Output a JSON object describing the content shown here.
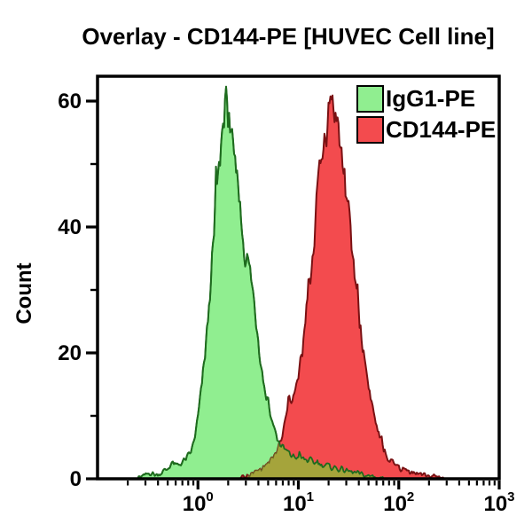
{
  "chart_data": {
    "type": "area",
    "subtype": "flow-cytometry-histogram-overlay",
    "title": "Overlay - CD144-PE [HUVEC Cell line]",
    "xlabel": "",
    "ylabel": "Count",
    "x_scale": "log10",
    "x_range_exponents": [
      -1,
      3
    ],
    "ylim": [
      0,
      64
    ],
    "y_ticks_major": [
      0,
      20,
      40,
      60
    ],
    "y_ticks_minor": [
      10,
      30,
      50
    ],
    "x_ticks_major_exponents": [
      0,
      1,
      2,
      3
    ],
    "x_minor_tick_decades": [
      -1,
      0,
      1,
      2
    ],
    "grid": false,
    "legend_position": "top-right-inside",
    "legend": [
      {
        "label": "IgG1-PE",
        "color": "#90EE90"
      },
      {
        "label": "CD144-PE",
        "color": "#F34B4E"
      }
    ],
    "colors": {
      "igg1_fill": "#90EE90",
      "igg1_stroke": "#1E6B1E",
      "cd144_fill": "#F34B4E",
      "cd144_stroke": "#7A1113",
      "overlap_fill": "#A5A43B",
      "overlap_stroke": "#6F7226",
      "axis": "#000000"
    },
    "series": [
      {
        "name": "IgG1-PE",
        "fill": "#90EE90",
        "stroke": "#1E6B1E",
        "peak_log_x": 0.27,
        "peak_count": 60,
        "points_log_count": [
          [
            -0.6,
            0
          ],
          [
            -0.54,
            0.4
          ],
          [
            -0.48,
            1.0
          ],
          [
            -0.42,
            0.6
          ],
          [
            -0.36,
            1.0
          ],
          [
            -0.3,
            1.6
          ],
          [
            -0.26,
            2.6
          ],
          [
            -0.22,
            2.0
          ],
          [
            -0.18,
            2.4
          ],
          [
            -0.14,
            2.8
          ],
          [
            -0.1,
            3.4
          ],
          [
            -0.06,
            4.6
          ],
          [
            -0.02,
            7.5
          ],
          [
            0.02,
            12
          ],
          [
            0.06,
            18
          ],
          [
            0.1,
            25
          ],
          [
            0.14,
            33
          ],
          [
            0.18,
            43
          ],
          [
            0.22,
            51
          ],
          [
            0.25,
            57
          ],
          [
            0.28,
            60
          ],
          [
            0.31,
            55
          ],
          [
            0.34,
            51
          ],
          [
            0.37,
            49
          ],
          [
            0.4,
            46
          ],
          [
            0.44,
            40
          ],
          [
            0.48,
            35
          ],
          [
            0.52,
            33
          ],
          [
            0.56,
            28
          ],
          [
            0.6,
            23
          ],
          [
            0.64,
            17
          ],
          [
            0.68,
            13
          ],
          [
            0.72,
            10
          ],
          [
            0.76,
            7.5
          ],
          [
            0.8,
            6
          ],
          [
            0.85,
            4.8
          ],
          [
            0.9,
            4.0
          ],
          [
            0.96,
            3.5
          ],
          [
            1.04,
            3.2
          ],
          [
            1.12,
            2.8
          ],
          [
            1.2,
            2.4
          ],
          [
            1.3,
            2.0
          ],
          [
            1.4,
            1.6
          ],
          [
            1.5,
            1.2
          ],
          [
            1.6,
            0.8
          ],
          [
            1.7,
            0.4
          ],
          [
            1.8,
            0.1
          ],
          [
            1.85,
            0
          ]
        ]
      },
      {
        "name": "CD144-PE",
        "fill": "#F34B4E",
        "stroke": "#7A1113",
        "peak_log_x": 1.33,
        "peak_count": 61,
        "points_log_count": [
          [
            0.42,
            0
          ],
          [
            0.5,
            0.4
          ],
          [
            0.56,
            0.9
          ],
          [
            0.62,
            1.5
          ],
          [
            0.68,
            2.2
          ],
          [
            0.74,
            3.0
          ],
          [
            0.79,
            4.5
          ],
          [
            0.84,
            6.5
          ],
          [
            0.88,
            10
          ],
          [
            0.91,
            13.5
          ],
          [
            0.94,
            13
          ],
          [
            0.97,
            13.5
          ],
          [
            1.0,
            16
          ],
          [
            1.04,
            20
          ],
          [
            1.08,
            25
          ],
          [
            1.12,
            32
          ],
          [
            1.16,
            39
          ],
          [
            1.2,
            46
          ],
          [
            1.24,
            52
          ],
          [
            1.28,
            57
          ],
          [
            1.31,
            60
          ],
          [
            1.34,
            61
          ],
          [
            1.37,
            58
          ],
          [
            1.41,
            54
          ],
          [
            1.45,
            49
          ],
          [
            1.49,
            43
          ],
          [
            1.53,
            37
          ],
          [
            1.57,
            31
          ],
          [
            1.61,
            25
          ],
          [
            1.65,
            20
          ],
          [
            1.69,
            16
          ],
          [
            1.73,
            12
          ],
          [
            1.77,
            9
          ],
          [
            1.81,
            6.5
          ],
          [
            1.85,
            4.5
          ],
          [
            1.9,
            3.0
          ],
          [
            1.96,
            2.2
          ],
          [
            2.03,
            1.6
          ],
          [
            2.1,
            1.2
          ],
          [
            2.18,
            0.9
          ],
          [
            2.26,
            0.6
          ],
          [
            2.35,
            0.3
          ],
          [
            2.45,
            0
          ]
        ]
      }
    ],
    "overlap_region_log_range": [
      0.5,
      1.8
    ]
  }
}
